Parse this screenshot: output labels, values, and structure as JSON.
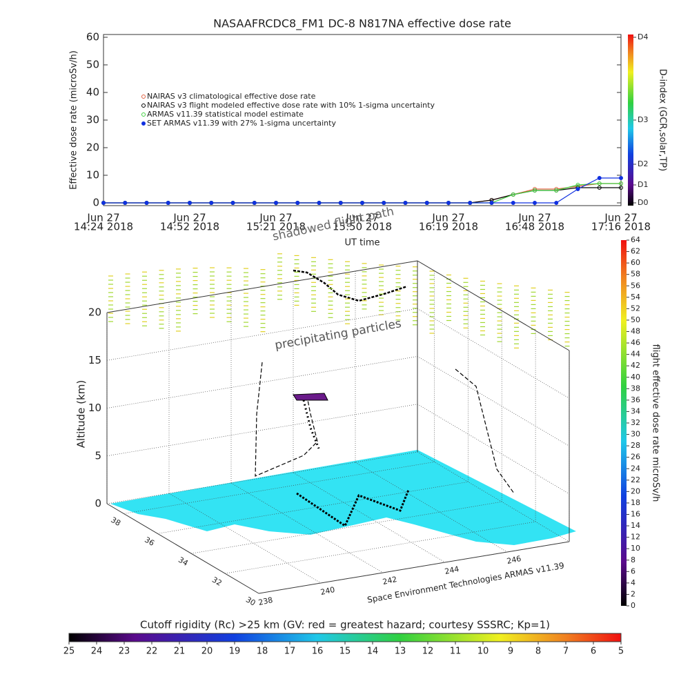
{
  "chart_data": [
    {
      "type": "line",
      "title": "NASAAFRCDC8_FM1 DC-8    N817NA effective dose rate",
      "ylabel": "Effective dose rate (microSv/h)",
      "xlabel": "UT time",
      "x_date": "Jun 27",
      "categories": [
        "14:24 2018",
        null,
        null,
        null,
        "14:52 2018",
        null,
        null,
        null,
        "15:21 2018",
        null,
        null,
        null,
        "15:50 2018",
        null,
        null,
        null,
        "16:19 2018",
        null,
        null,
        null,
        "16:48 2018",
        null,
        null,
        null,
        "17:16 2018"
      ],
      "ylim": [
        -1,
        61
      ],
      "yticks": [
        0,
        10,
        20,
        30,
        40,
        50,
        60
      ],
      "series": [
        {
          "name": "NAIRAS v3 climatological effective dose rate",
          "color": "#e06040",
          "values": [
            0,
            0,
            0,
            0,
            0,
            0,
            0,
            0,
            0,
            0,
            0,
            0,
            0,
            0,
            0,
            0,
            0,
            0,
            1,
            3,
            5,
            5,
            6,
            7,
            7
          ]
        },
        {
          "name": "NAIRAS v3 flight modeled effective dose rate with 10% 1-sigma uncertainty",
          "color": "#000000",
          "values": [
            0,
            0,
            0,
            0,
            0,
            0,
            0,
            0,
            0,
            0,
            0,
            0,
            0,
            0,
            0,
            0,
            0,
            0,
            1,
            3,
            4.5,
            4.5,
            5.5,
            5.5,
            5.5
          ]
        },
        {
          "name": "ARMAS v11.39 statistical model estimate",
          "color": "#40d040",
          "values": [
            0,
            0,
            0,
            0,
            0,
            0,
            0,
            0,
            0,
            0,
            0,
            0,
            0,
            0,
            0,
            0,
            0,
            0,
            0,
            3,
            4.5,
            4.5,
            6.5,
            7,
            7
          ]
        },
        {
          "name": "SET ARMAS v11.39 with 27% 1-sigma uncertainty",
          "color": "#1030e0",
          "values": [
            0,
            0,
            0,
            0,
            0,
            0,
            0,
            0,
            0,
            0,
            0,
            0,
            0,
            0,
            0,
            0,
            0,
            0,
            0,
            0,
            0,
            0,
            5,
            9,
            9
          ]
        }
      ],
      "colorbar": {
        "label": "D-index (GCR,solar,TP)",
        "ticks": [
          {
            "value": 0,
            "label": "D0"
          },
          {
            "value": 6.5,
            "label": "D1"
          },
          {
            "value": 14,
            "label": "D2"
          },
          {
            "value": 30,
            "label": "D3"
          },
          {
            "value": 60,
            "label": "D4"
          }
        ]
      }
    },
    {
      "type": "surface3d",
      "zlabel": "Altitude (km)",
      "zlim": [
        0,
        20
      ],
      "zticks": [
        0,
        5,
        10,
        15,
        20
      ],
      "latlim": [
        39,
        30
      ],
      "latticks": [
        30,
        32,
        34,
        36,
        38
      ],
      "lonlim": [
        238,
        248
      ],
      "lonticks": [
        238,
        240,
        242,
        244,
        246
      ],
      "annotations": [
        "shadowed flight path",
        "precipitating particles",
        "Space Environment Technologies ARMAS v11.39"
      ],
      "colorbar": {
        "label": "flight effective dose rate microSv/h",
        "lim": [
          0,
          64
        ],
        "ticks": [
          0,
          2,
          4,
          6,
          8,
          10,
          12,
          14,
          16,
          18,
          20,
          22,
          24,
          26,
          28,
          30,
          32,
          34,
          36,
          38,
          40,
          42,
          44,
          46,
          48,
          50,
          52,
          54,
          56,
          58,
          60,
          62,
          64
        ]
      }
    },
    {
      "type": "colorbar",
      "title": "Cutoff rigidity (Rc) >25 km (GV: red = greatest hazard; courtesy SSSRC; Kp=1)",
      "lim": [
        25,
        5
      ],
      "ticks": [
        25,
        24,
        23,
        22,
        21,
        20,
        19,
        18,
        17,
        16,
        15,
        14,
        13,
        12,
        11,
        10,
        9,
        8,
        7,
        6,
        5
      ]
    }
  ]
}
